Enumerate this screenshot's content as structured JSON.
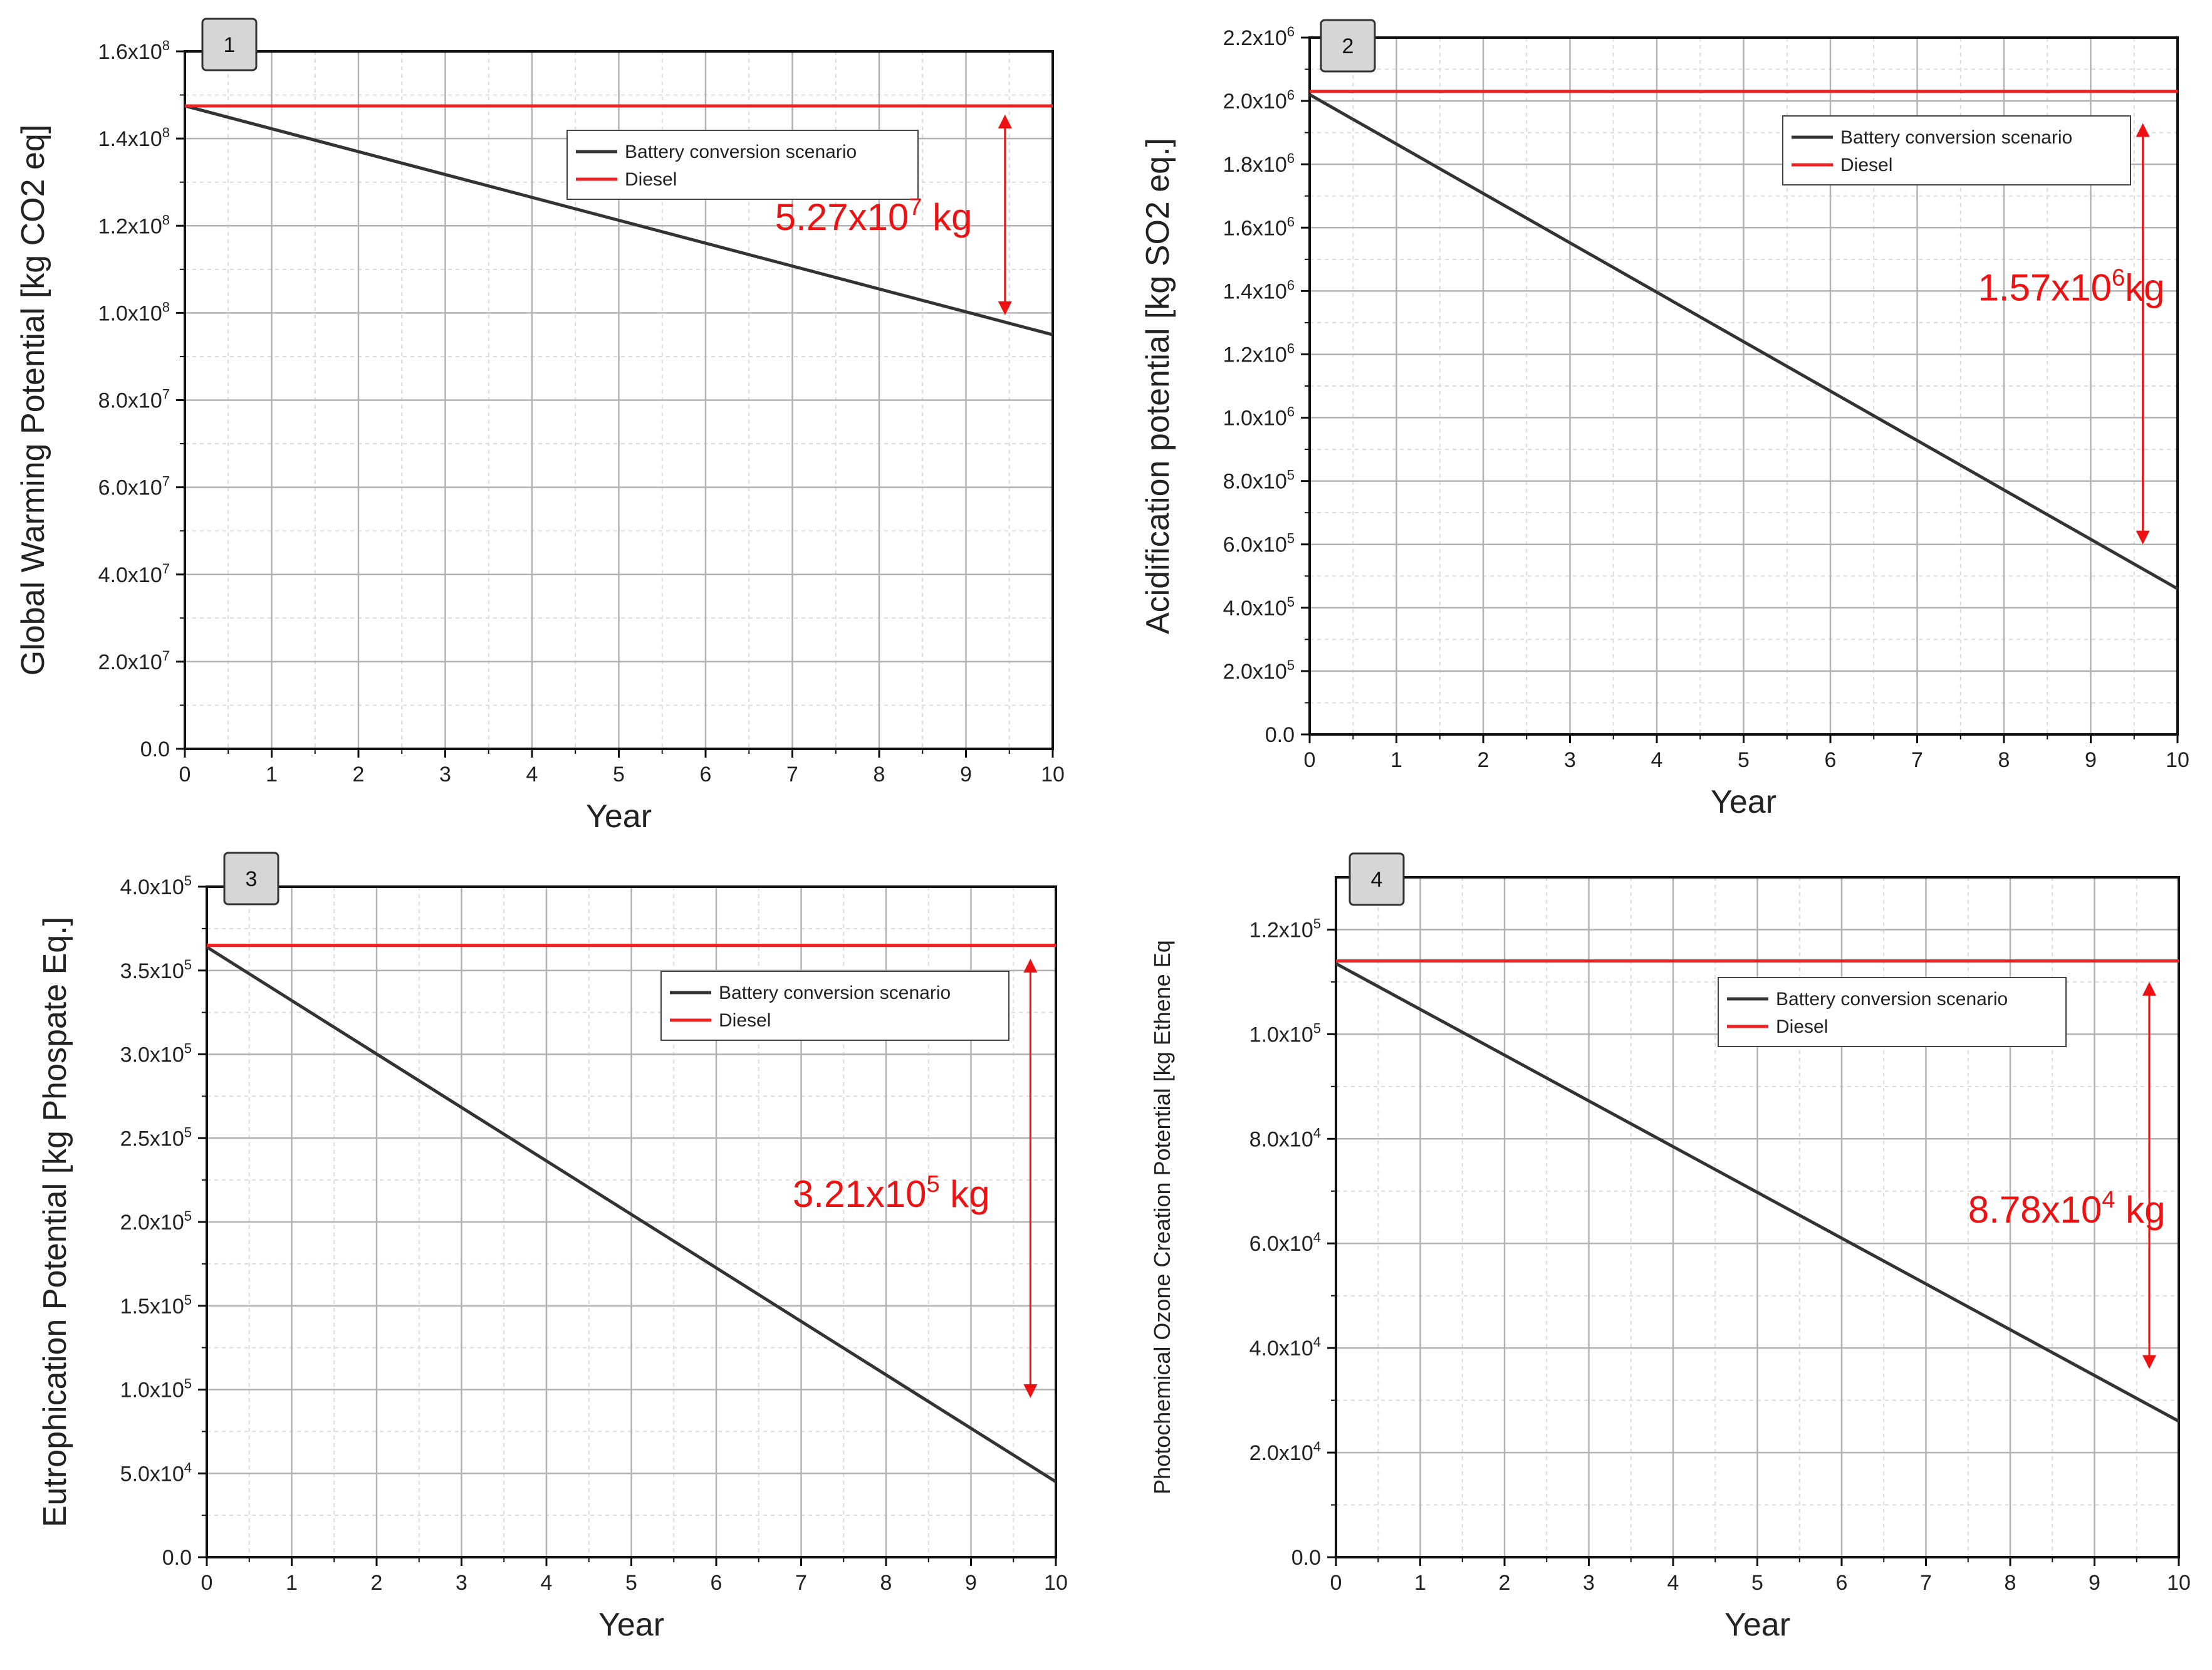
{
  "colors": {
    "battery_line": "#333333",
    "diesel_line": "#ee2222",
    "annotation": "#ee1111",
    "grid_major": "#b3b3b3",
    "grid_minor": "#dcdcdc",
    "badge_fill": "#d6d6d6"
  },
  "legend_labels": {
    "battery": "Battery conversion scenario",
    "diesel": "Diesel"
  },
  "chart_data": [
    {
      "panel_label": "1",
      "type": "line",
      "xlabel": "Year",
      "ylabel": "Global Warming Potential [kg CO2 eq]",
      "xlim": [
        0,
        10
      ],
      "ylim": [
        0,
        160000000
      ],
      "x_ticks": [
        "0",
        "1",
        "2",
        "3",
        "4",
        "5",
        "6",
        "7",
        "8",
        "9",
        "10"
      ],
      "y_ticks": [
        {
          "value": 0,
          "mantissa": "0.0",
          "exp": ""
        },
        {
          "value": 20000000,
          "mantissa": "2.0x10",
          "exp": "7"
        },
        {
          "value": 40000000,
          "mantissa": "4.0x10",
          "exp": "7"
        },
        {
          "value": 60000000,
          "mantissa": "6.0x10",
          "exp": "7"
        },
        {
          "value": 80000000,
          "mantissa": "8.0x10",
          "exp": "7"
        },
        {
          "value": 100000000,
          "mantissa": "1.0x10",
          "exp": "8"
        },
        {
          "value": 120000000,
          "mantissa": "1.2x10",
          "exp": "8"
        },
        {
          "value": 140000000,
          "mantissa": "1.4x10",
          "exp": "8"
        },
        {
          "value": 160000000,
          "mantissa": "1.6x10",
          "exp": "8"
        }
      ],
      "series": [
        {
          "name": "Battery conversion scenario",
          "x": [
            0,
            10
          ],
          "values": [
            147500000,
            95000000
          ]
        },
        {
          "name": "Diesel",
          "x": [
            0,
            10
          ],
          "values": [
            147500000,
            147500000
          ]
        }
      ],
      "legend_position": "upper-center",
      "annotation": {
        "mantissa": "5.27x10",
        "exp": "7",
        "suffix": " kg",
        "arrow_x": 9.45,
        "y_top": 145500000,
        "y_bottom": 99500000,
        "text_x": 6.8,
        "text_y": 119000000
      }
    },
    {
      "panel_label": "2",
      "type": "line",
      "xlabel": "Year",
      "ylabel": "Acidification potential [kg SO2 eq.]",
      "xlim": [
        0,
        10
      ],
      "ylim": [
        0,
        2200000
      ],
      "x_ticks": [
        "0",
        "1",
        "2",
        "3",
        "4",
        "5",
        "6",
        "7",
        "8",
        "9",
        "10"
      ],
      "y_ticks": [
        {
          "value": 0,
          "mantissa": "0.0",
          "exp": ""
        },
        {
          "value": 200000,
          "mantissa": "2.0x10",
          "exp": "5"
        },
        {
          "value": 400000,
          "mantissa": "4.0x10",
          "exp": "5"
        },
        {
          "value": 600000,
          "mantissa": "6.0x10",
          "exp": "5"
        },
        {
          "value": 800000,
          "mantissa": "8.0x10",
          "exp": "5"
        },
        {
          "value": 1000000,
          "mantissa": "1.0x10",
          "exp": "6"
        },
        {
          "value": 1200000,
          "mantissa": "1.2x10",
          "exp": "6"
        },
        {
          "value": 1400000,
          "mantissa": "1.4x10",
          "exp": "6"
        },
        {
          "value": 1600000,
          "mantissa": "1.6x10",
          "exp": "6"
        },
        {
          "value": 1800000,
          "mantissa": "1.8x10",
          "exp": "6"
        },
        {
          "value": 2000000,
          "mantissa": "2.0x10",
          "exp": "6"
        },
        {
          "value": 2200000,
          "mantissa": "2.2x10",
          "exp": "6"
        }
      ],
      "series": [
        {
          "name": "Battery conversion scenario",
          "x": [
            0,
            10
          ],
          "values": [
            2020000,
            460000
          ]
        },
        {
          "name": "Diesel",
          "x": [
            0,
            10
          ],
          "values": [
            2030000,
            2030000
          ]
        }
      ],
      "legend_position": "upper-right",
      "annotation": {
        "mantissa": "1.57x10",
        "exp": "6",
        "suffix": "kg",
        "arrow_x": 9.6,
        "y_top": 1930000,
        "y_bottom": 600000,
        "text_x": 7.7,
        "text_y": 1370000
      }
    },
    {
      "panel_label": "3",
      "type": "line",
      "xlabel": "Year",
      "ylabel": "Eutrophication Potential [kg Phospate Eq.]",
      "xlim": [
        0,
        10
      ],
      "ylim": [
        0,
        400000
      ],
      "x_ticks": [
        "0",
        "1",
        "2",
        "3",
        "4",
        "5",
        "6",
        "7",
        "8",
        "9",
        "10"
      ],
      "y_ticks": [
        {
          "value": 0,
          "mantissa": "0.0",
          "exp": ""
        },
        {
          "value": 50000,
          "mantissa": "5.0x10",
          "exp": "4"
        },
        {
          "value": 100000,
          "mantissa": "1.0x10",
          "exp": "5"
        },
        {
          "value": 150000,
          "mantissa": "1.5x10",
          "exp": "5"
        },
        {
          "value": 200000,
          "mantissa": "2.0x10",
          "exp": "5"
        },
        {
          "value": 250000,
          "mantissa": "2.5x10",
          "exp": "5"
        },
        {
          "value": 300000,
          "mantissa": "3.0x10",
          "exp": "5"
        },
        {
          "value": 350000,
          "mantissa": "3.5x10",
          "exp": "5"
        },
        {
          "value": 400000,
          "mantissa": "4.0x10",
          "exp": "5"
        }
      ],
      "series": [
        {
          "name": "Battery conversion scenario",
          "x": [
            0,
            10
          ],
          "values": [
            364000,
            45000
          ]
        },
        {
          "name": "Diesel",
          "x": [
            0,
            10
          ],
          "values": [
            365000,
            365000
          ]
        }
      ],
      "legend_position": "upper-right",
      "annotation": {
        "mantissa": "3.21x10",
        "exp": "5",
        "suffix": " kg",
        "arrow_x": 9.7,
        "y_top": 357000,
        "y_bottom": 95000,
        "text_x": 6.9,
        "text_y": 209000
      }
    },
    {
      "panel_label": "4",
      "type": "line",
      "xlabel": "Year",
      "ylabel": "Photochemical Ozone Creation Potential [kg Ethene Eq",
      "xlim": [
        0,
        10
      ],
      "ylim": [
        0,
        130000
      ],
      "x_ticks": [
        "0",
        "1",
        "2",
        "3",
        "4",
        "5",
        "6",
        "7",
        "8",
        "9",
        "10"
      ],
      "y_ticks": [
        {
          "value": 0,
          "mantissa": "0.0",
          "exp": ""
        },
        {
          "value": 20000,
          "mantissa": "2.0x10",
          "exp": "4"
        },
        {
          "value": 40000,
          "mantissa": "4.0x10",
          "exp": "4"
        },
        {
          "value": 60000,
          "mantissa": "6.0x10",
          "exp": "4"
        },
        {
          "value": 80000,
          "mantissa": "8.0x10",
          "exp": "4"
        },
        {
          "value": 100000,
          "mantissa": "1.0x10",
          "exp": "5"
        },
        {
          "value": 120000,
          "mantissa": "1.2x10",
          "exp": "5"
        }
      ],
      "series": [
        {
          "name": "Battery conversion scenario",
          "x": [
            0,
            10
          ],
          "values": [
            113500.0,
            26000
          ]
        },
        {
          "name": "Diesel",
          "x": [
            0,
            10
          ],
          "values": [
            114000,
            114000
          ]
        }
      ],
      "legend_position": "upper-right",
      "annotation": {
        "mantissa": "8.78x10",
        "exp": "4",
        "suffix": " kg",
        "arrow_x": 9.65,
        "y_top": 110000,
        "y_bottom": 36000,
        "text_x": 7.5,
        "text_y": 64000
      }
    }
  ]
}
